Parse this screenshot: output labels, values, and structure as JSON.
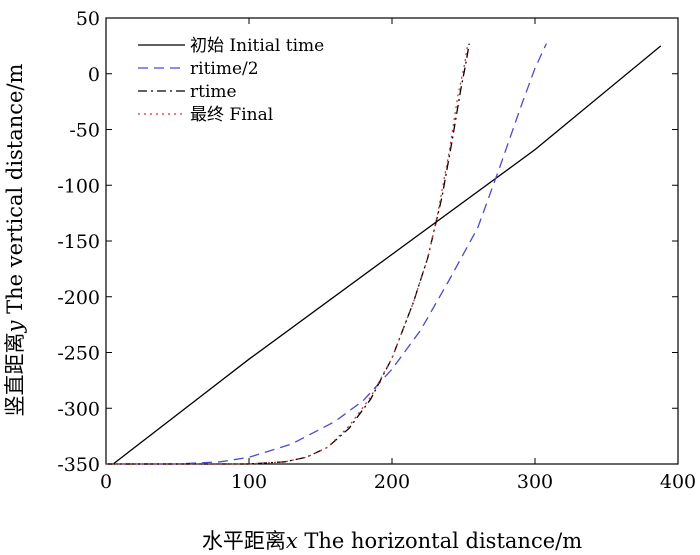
{
  "chart_data": {
    "type": "line",
    "xlabel": {
      "prefix": "水平距离",
      "var": "x",
      "suffix": " The horizontal distance/m"
    },
    "ylabel": {
      "prefix": "竖直距离",
      "var": "y",
      "suffix": " The vertical distance/m"
    },
    "xlim": [
      0,
      400
    ],
    "ylim": [
      -350,
      50
    ],
    "xticks": [
      0,
      100,
      200,
      300,
      400
    ],
    "yticks": [
      50,
      0,
      -50,
      -100,
      -150,
      -200,
      -250,
      -300,
      -350
    ],
    "grid": false,
    "legend_position": "top-left",
    "series": [
      {
        "name": "初始 Initial time",
        "color": "#000000",
        "dash": "solid",
        "x": [
          5,
          100,
          200,
          300,
          388
        ],
        "y": [
          -350,
          -256,
          -162,
          -68,
          25
        ]
      },
      {
        "name": "ritime/2",
        "color": "#4a4acc",
        "dash": "dash",
        "x": [
          0,
          50,
          80,
          100,
          130,
          160,
          180,
          200,
          220,
          240,
          260,
          275,
          290,
          300,
          308
        ],
        "y": [
          -350,
          -350,
          -348,
          -344,
          -332,
          -312,
          -293,
          -265,
          -230,
          -185,
          -138,
          -85,
          -30,
          5,
          27
        ]
      },
      {
        "name": "rtime",
        "color": "#000000",
        "dash": "dashdot",
        "x": [
          0,
          100,
          125,
          140,
          155,
          170,
          185,
          200,
          215,
          225,
          235,
          242,
          248,
          252,
          254
        ],
        "y": [
          -350,
          -350,
          -348,
          -344,
          -335,
          -318,
          -292,
          -255,
          -205,
          -165,
          -110,
          -60,
          -15,
          12,
          27
        ]
      },
      {
        "name": "最终 Final",
        "color": "#cc3333",
        "dash": "dot",
        "x": [
          0,
          100,
          125,
          140,
          155,
          170,
          185,
          200,
          215,
          225,
          232,
          240,
          246,
          251,
          253
        ],
        "y": [
          -350,
          -350,
          -348,
          -344,
          -335,
          -316,
          -290,
          -255,
          -205,
          -165,
          -125,
          -70,
          -20,
          10,
          27
        ]
      }
    ]
  }
}
